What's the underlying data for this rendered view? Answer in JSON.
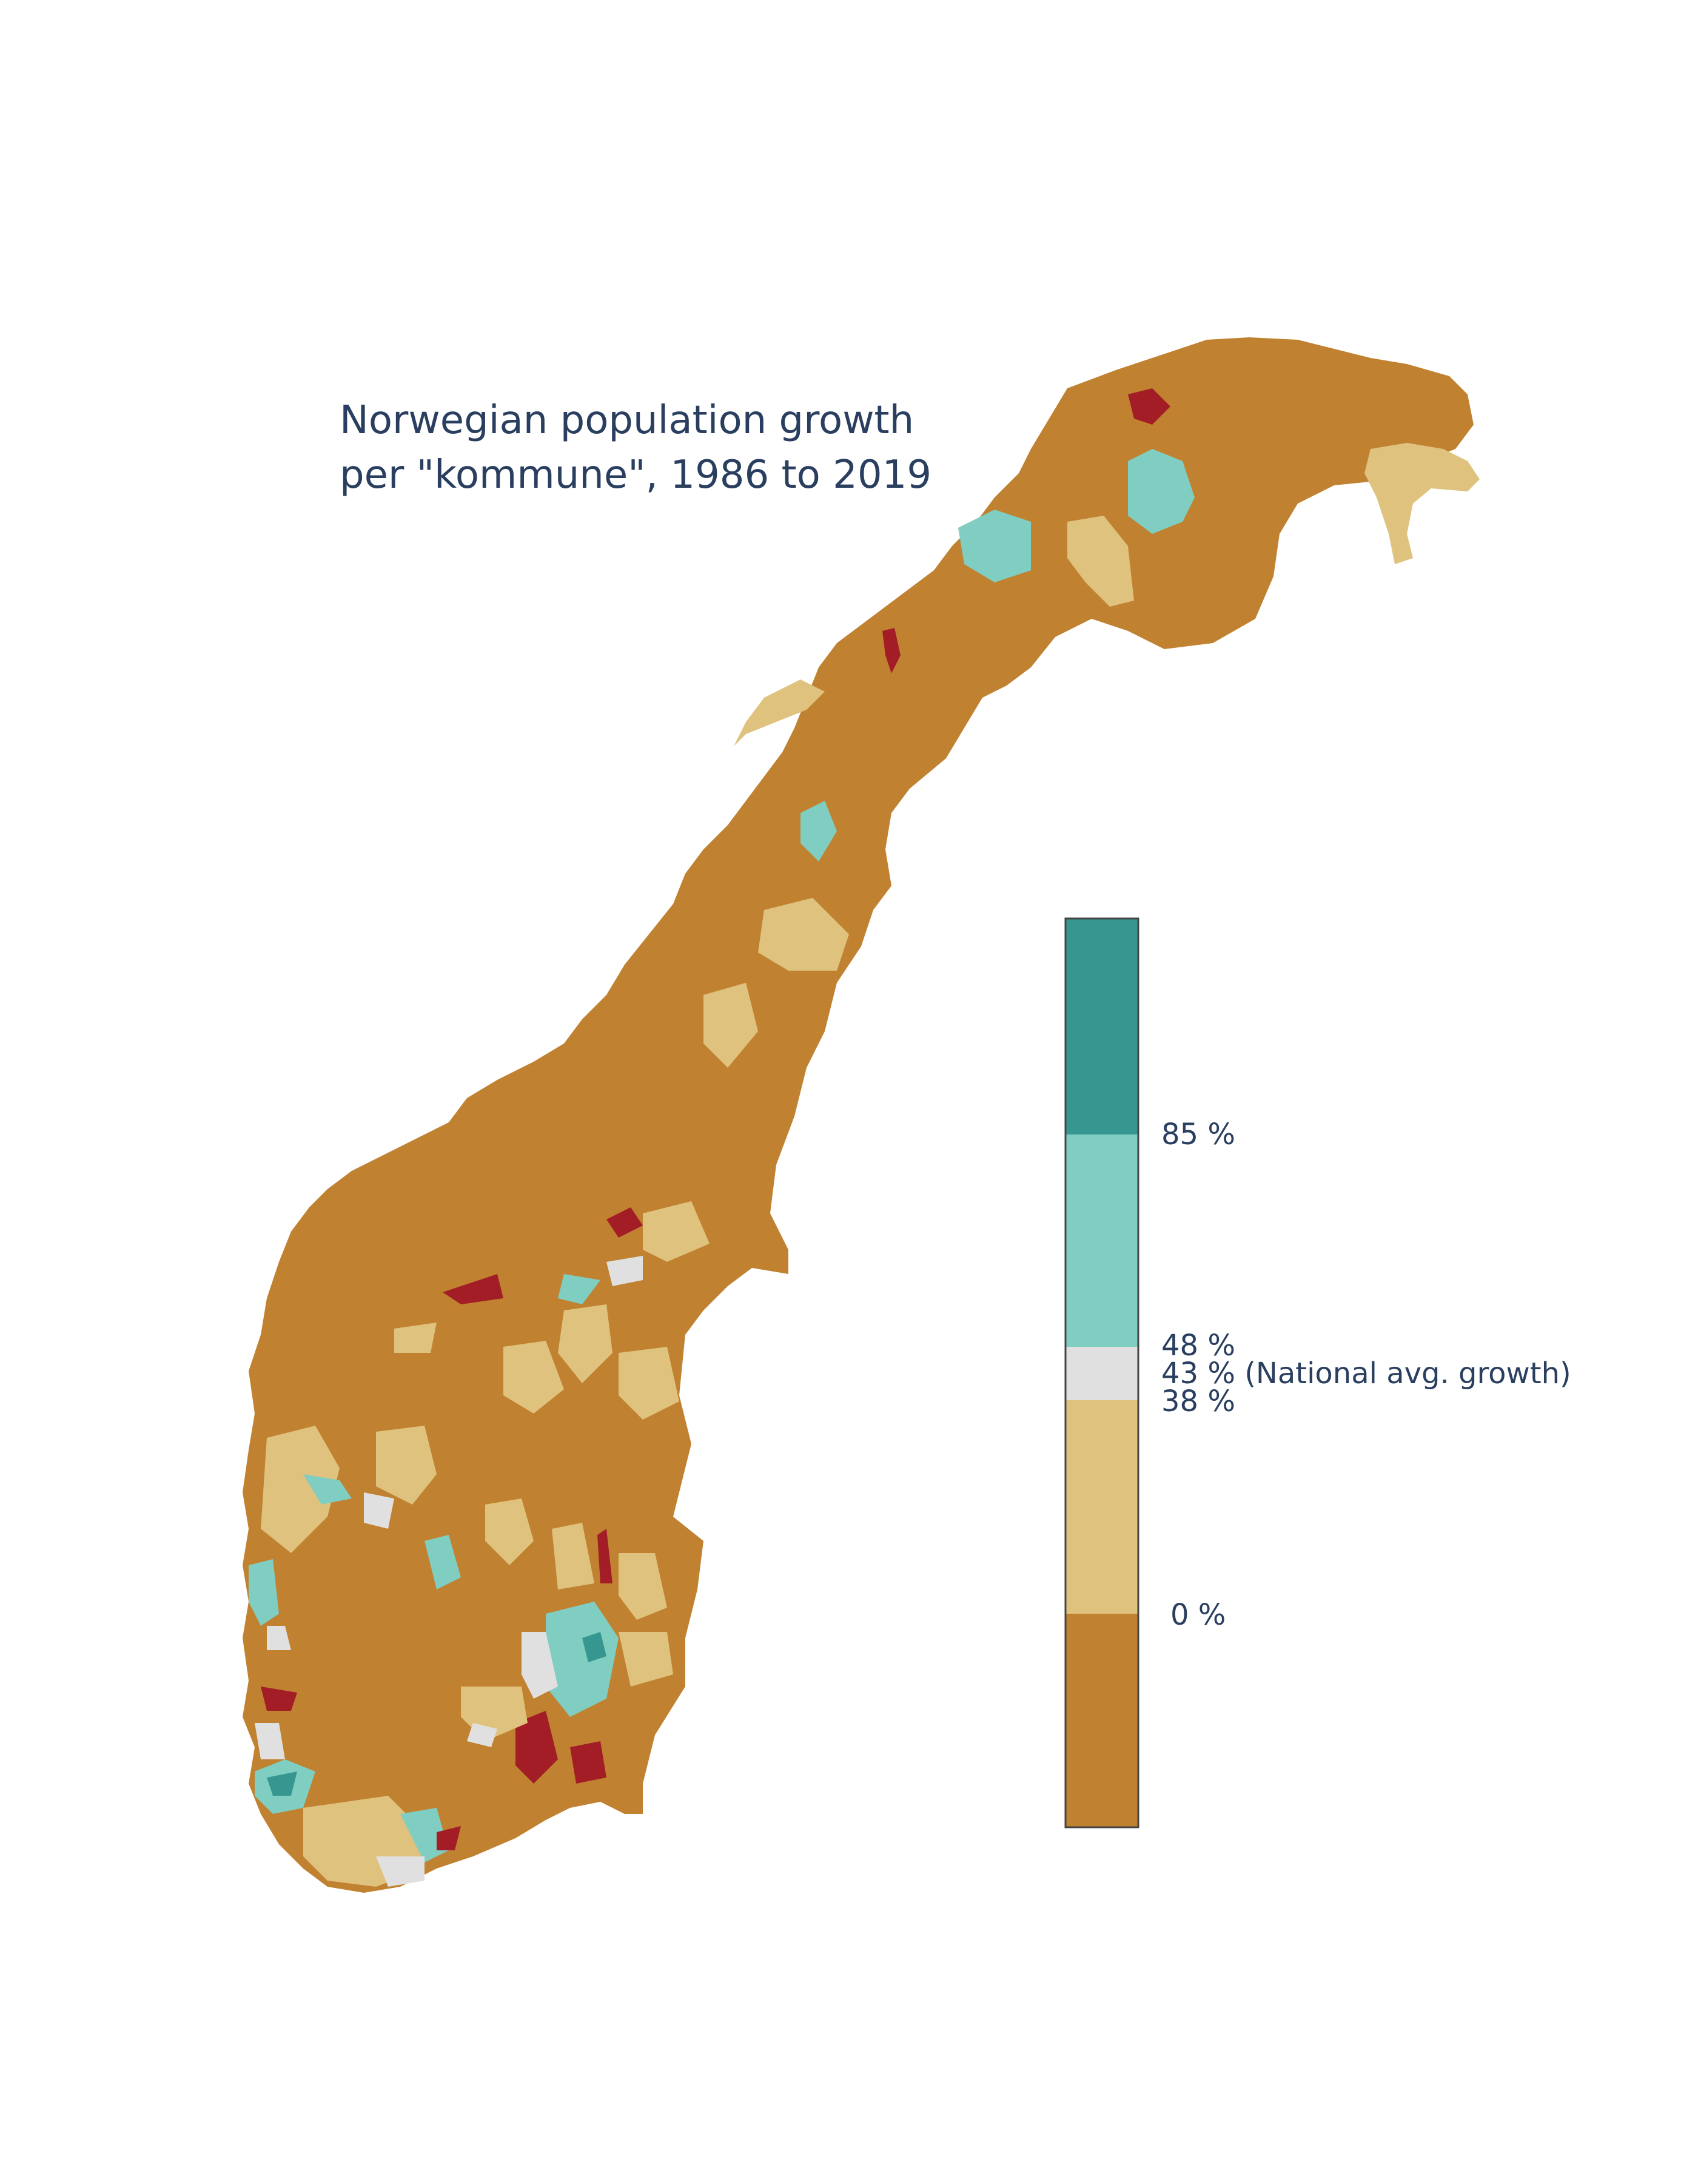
{
  "title": {
    "line1": "Norwegian population growth",
    "line2": "per \"kommune\", 1986 to 2019"
  },
  "colors": {
    "decline": "#c08230",
    "low_growth": "#dfc27d",
    "national_avg": "#e0e0e0",
    "high_growth": "#80cdc1",
    "very_high_growth": "#35978f",
    "highlight": "#a31d26"
  },
  "colorbar": {
    "bands": [
      {
        "name": "decline",
        "color": "#c08230"
      },
      {
        "name": "low-growth",
        "color": "#dfc27d"
      },
      {
        "name": "national-avg",
        "color": "#e0e0e0"
      },
      {
        "name": "high-growth",
        "color": "#80cdc1"
      },
      {
        "name": "very-high-growth",
        "color": "#35978f"
      }
    ],
    "tick_labels": {
      "t85": "85 %",
      "t48": "48 %",
      "t43": "43 % (National avg. growth)",
      "t38": "38 %",
      "t0": "0 %"
    }
  }
}
